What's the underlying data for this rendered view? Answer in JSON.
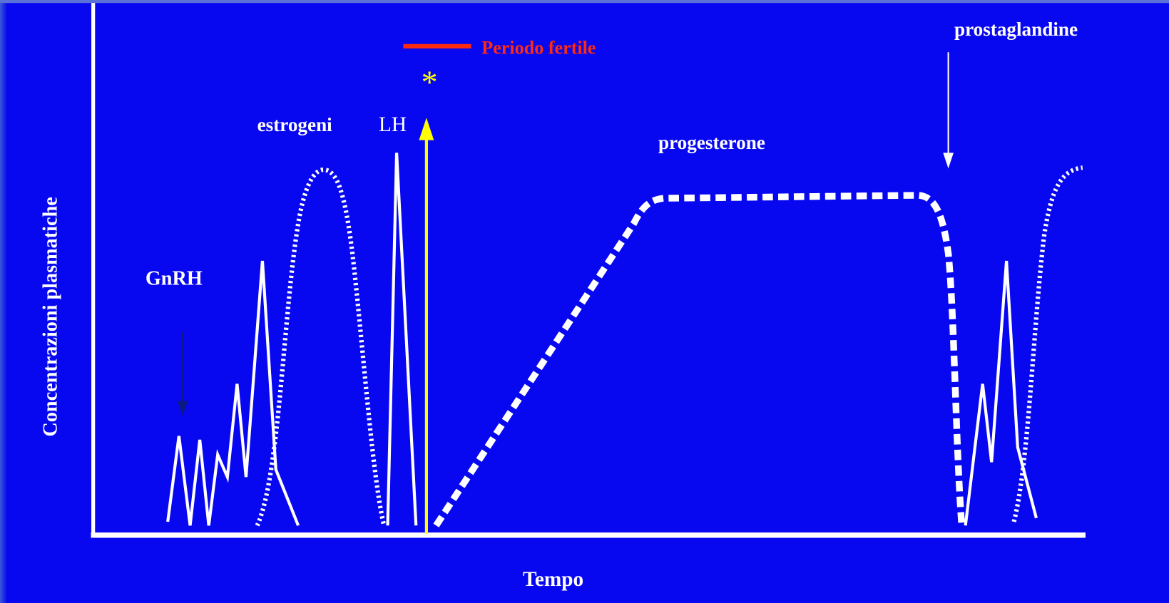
{
  "labels": {
    "fertile_period": "Periodo fertile",
    "ovulation_mark": "*",
    "estrogen": "estrogeni",
    "lh": "LH",
    "progesterone": "progesterone",
    "prostaglandin": "prostaglandine",
    "gnrh": "GnRH",
    "y_axis": "Concentrazioni plasmatiche",
    "x_axis": "Tempo"
  }
}
